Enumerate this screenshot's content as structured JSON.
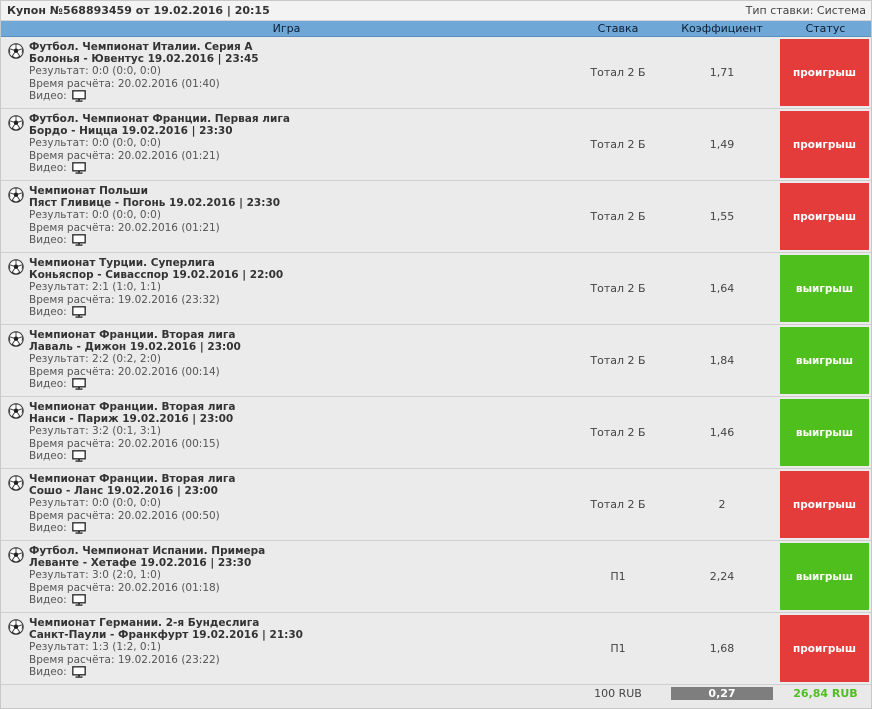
{
  "header": {
    "title": "Купон №568893459 от 19.02.2016 | 20:15",
    "bet_type": "Тип ставки: Система"
  },
  "columns": {
    "game": "Игра",
    "stake": "Ставка",
    "coef": "Коэффициент",
    "status": "Статус"
  },
  "labels": {
    "video": "Видео:"
  },
  "rows": [
    {
      "league": "Футбол. Чемпионат Италии. Серия А",
      "match": "Болонья - Ювентус 19.02.2016 | 23:45",
      "result": "Результат: 0:0 (0:0, 0:0)",
      "calc": "Время расчёта: 20.02.2016 (01:40)",
      "stake": "Тотал 2 Б",
      "coef": "1,71",
      "status": "проигрыш",
      "won": false
    },
    {
      "league": "Футбол. Чемпионат Франции. Первая лига",
      "match": "Бордо - Ницца 19.02.2016 | 23:30",
      "result": "Результат: 0:0 (0:0, 0:0)",
      "calc": "Время расчёта: 20.02.2016 (01:21)",
      "stake": "Тотал 2 Б",
      "coef": "1,49",
      "status": "проигрыш",
      "won": false
    },
    {
      "league": "Чемпионат Польши",
      "match": "Пяст Гливице - Погонь 19.02.2016 | 23:30",
      "result": "Результат: 0:0 (0:0, 0:0)",
      "calc": "Время расчёта: 20.02.2016 (01:21)",
      "stake": "Тотал 2 Б",
      "coef": "1,55",
      "status": "проигрыш",
      "won": false
    },
    {
      "league": "Чемпионат Турции. Суперлига",
      "match": "Коньяспор - Сивасспор 19.02.2016 | 22:00",
      "result": "Результат: 2:1 (1:0, 1:1)",
      "calc": "Время расчёта: 19.02.2016 (23:32)",
      "stake": "Тотал 2 Б",
      "coef": "1,64",
      "status": "выигрыш",
      "won": true
    },
    {
      "league": "Чемпионат Франции. Вторая лига",
      "match": "Лаваль - Дижон 19.02.2016 | 23:00",
      "result": "Результат: 2:2 (0:2, 2:0)",
      "calc": "Время расчёта: 20.02.2016 (00:14)",
      "stake": "Тотал 2 Б",
      "coef": "1,84",
      "status": "выигрыш",
      "won": true
    },
    {
      "league": "Чемпионат Франции. Вторая лига",
      "match": "Нанси - Париж 19.02.2016 | 23:00",
      "result": "Результат: 3:2 (0:1, 3:1)",
      "calc": "Время расчёта: 20.02.2016 (00:15)",
      "stake": "Тотал 2 Б",
      "coef": "1,46",
      "status": "выигрыш",
      "won": true
    },
    {
      "league": "Чемпионат Франции. Вторая лига",
      "match": "Сошо - Ланс 19.02.2016 | 23:00",
      "result": "Результат: 0:0 (0:0, 0:0)",
      "calc": "Время расчёта: 20.02.2016 (00:50)",
      "stake": "Тотал 2 Б",
      "coef": "2",
      "status": "проигрыш",
      "won": false
    },
    {
      "league": "Футбол. Чемпионат Испании. Примера",
      "match": "Леванте - Хетафе 19.02.2016 | 23:30",
      "result": "Результат: 3:0 (2:0, 1:0)",
      "calc": "Время расчёта: 20.02.2016 (01:18)",
      "stake": "П1",
      "coef": "2,24",
      "status": "выигрыш",
      "won": true
    },
    {
      "league": "Чемпионат Германии. 2-я Бундеслига",
      "match": "Санкт-Паули - Франкфурт 19.02.2016 | 21:30",
      "result": "Результат: 1:3 (1:2, 0:1)",
      "calc": "Время расчёта: 19.02.2016 (23:22)",
      "stake": "П1",
      "coef": "1,68",
      "status": "проигрыш",
      "won": false
    }
  ],
  "footer": {
    "stake": "100 RUB",
    "coef": "0,27",
    "win": "26,84 RUB"
  },
  "icons": {
    "ball": "soccer-ball-icon",
    "video": "monitor-icon"
  },
  "colors": {
    "lost": "#e43b3b",
    "won": "#4fbf1e",
    "header_bar": "#6fa7d6"
  }
}
